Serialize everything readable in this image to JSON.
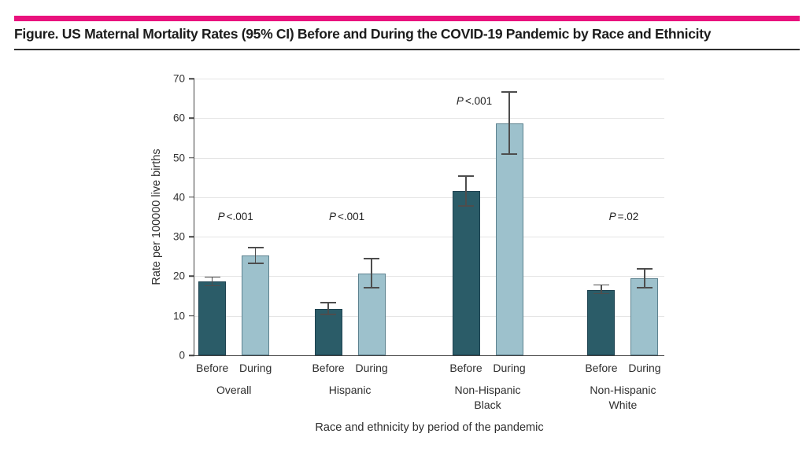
{
  "figure": {
    "title": "Figure. US Maternal Mortality Rates (95% CI) Before and During the COVID-19 Pandemic by Race and Ethnicity",
    "accent_color": "#e9127d"
  },
  "chart_data": {
    "type": "bar",
    "title": "",
    "xlabel": "Race and ethnicity by period of the pandemic",
    "ylabel": "Rate per 100000 live births",
    "ylim": [
      0,
      70
    ],
    "yticks": [
      0,
      10,
      20,
      30,
      40,
      50,
      60,
      70
    ],
    "grid": true,
    "legend_position": "none",
    "series_labels": [
      "Before",
      "During"
    ],
    "colors": {
      "before_fill": "#2b5c68",
      "before_border": "#1d4250",
      "during_fill": "#9dc1cc",
      "during_border": "#5d828f",
      "error_bar": "#4d4d4d",
      "gridline": "#e4e4e4",
      "axis": "#424242"
    },
    "groups": [
      {
        "name_lines": [
          "Overall"
        ],
        "p_label": "P<.001",
        "bars": [
          {
            "period": "Before",
            "value": 18.6,
            "ci": [
              17.6,
              19.8
            ]
          },
          {
            "period": "During",
            "value": 25.2,
            "ci": [
              23.3,
              27.2
            ]
          }
        ]
      },
      {
        "name_lines": [
          "Hispanic"
        ],
        "p_label": "P<.001",
        "bars": [
          {
            "period": "Before",
            "value": 11.8,
            "ci": [
              10.3,
              13.3
            ]
          },
          {
            "period": "During",
            "value": 20.7,
            "ci": [
              17.1,
              24.5
            ]
          }
        ]
      },
      {
        "name_lines": [
          "Non-Hispanic",
          "Black"
        ],
        "p_label": "P<.001",
        "bars": [
          {
            "period": "Before",
            "value": 41.5,
            "ci": [
              37.8,
              45.3
            ]
          },
          {
            "period": "During",
            "value": 58.6,
            "ci": [
              50.9,
              66.6
            ]
          }
        ]
      },
      {
        "name_lines": [
          "Non-Hispanic",
          "White"
        ],
        "p_label": "P=.02",
        "bars": [
          {
            "period": "Before",
            "value": 16.5,
            "ci": [
              15.6,
              17.8
            ]
          },
          {
            "period": "During",
            "value": 19.4,
            "ci": [
              17.1,
              21.8
            ]
          }
        ]
      }
    ],
    "layout": {
      "group_center_fractions": [
        0.084,
        0.331,
        0.624,
        0.912
      ],
      "p_label_levels": [
        34.6,
        34.6,
        63.8,
        34.6
      ],
      "p_label_dx": [
        2,
        -4,
        -17,
        1
      ]
    }
  }
}
